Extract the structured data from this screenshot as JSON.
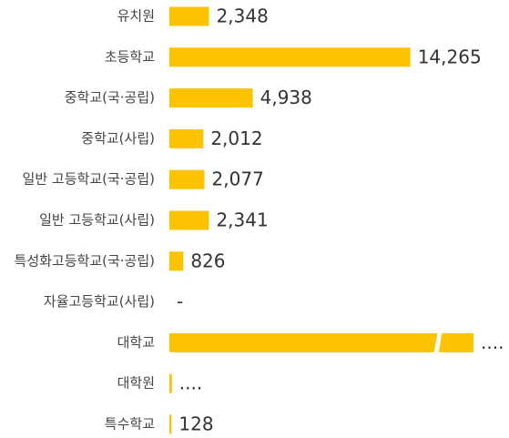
{
  "chart_data": {
    "type": "hbar",
    "categories": [
      "유치원",
      "초등학교",
      "중학교(국·공립)",
      "중학교(사립)",
      "일반 고등학교(국·공립)",
      "일반 고등학교(사립)",
      "특성화고등학교(국·공립)",
      "자율고등학교(사립)",
      "대학교",
      "대학원",
      "특수학교"
    ],
    "values": [
      2348,
      14265,
      4938,
      2012,
      2077,
      2341,
      826,
      null,
      18000,
      150,
      128
    ],
    "value_labels": [
      "2,348",
      "14,265",
      "4,938",
      "2,012",
      "2,077",
      "2,341",
      "826",
      "-",
      "....",
      "....",
      "128"
    ],
    "color": "#fcc300",
    "xlim": [
      0,
      18000
    ]
  }
}
